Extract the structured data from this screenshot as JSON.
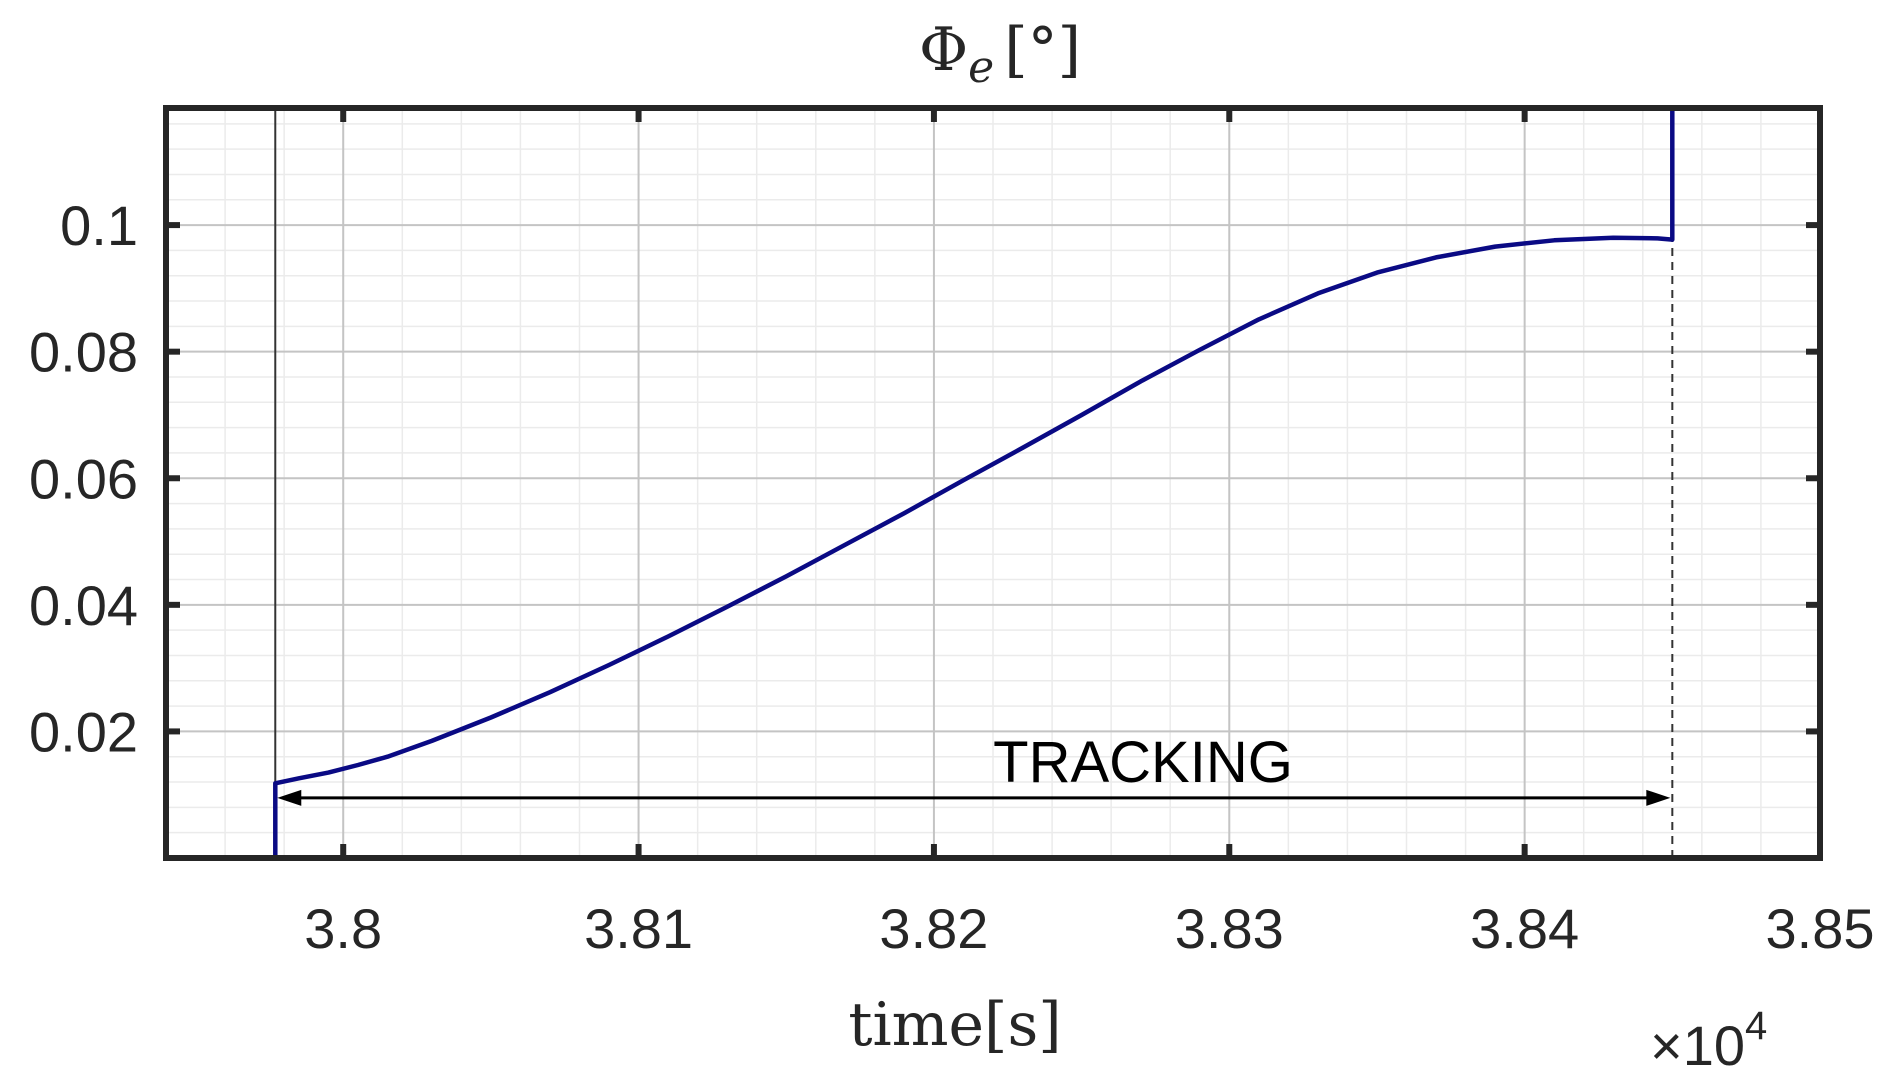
{
  "chart_data": {
    "type": "line",
    "title_symbol": "Φ",
    "title_subscript": "e",
    "title_unit": "[°]",
    "xlabel": "time[s]",
    "ylabel": "",
    "x_exponent_base": "×10",
    "x_exponent_power": "4",
    "xlim": [
      3.794,
      3.85
    ],
    "ylim": [
      0,
      0.1185
    ],
    "x_ticks": [
      3.8,
      3.81,
      3.82,
      3.83,
      3.84,
      3.85
    ],
    "x_tick_labels": [
      "3.8",
      "3.81",
      "3.82",
      "3.83",
      "3.84",
      "3.85"
    ],
    "y_ticks": [
      0.02,
      0.04,
      0.06,
      0.08,
      0.1
    ],
    "y_tick_labels": [
      "0.02",
      "0.04",
      "0.06",
      "0.08",
      "0.1"
    ],
    "grid": true,
    "minor_grid": true,
    "line_color": "#0a0a84",
    "series": [
      {
        "x": [
          3.7977,
          3.7977,
          3.7985,
          3.7995,
          3.8005,
          3.8015,
          3.803,
          3.805,
          3.807,
          3.809,
          3.811,
          3.813,
          3.815,
          3.817,
          3.819,
          3.821,
          3.823,
          3.825,
          3.827,
          3.829,
          3.831,
          3.833,
          3.835,
          3.837,
          3.839,
          3.841,
          3.843,
          3.8445,
          3.845,
          3.845
        ],
        "y": [
          0.0,
          0.0118,
          0.0126,
          0.0135,
          0.0147,
          0.016,
          0.0185,
          0.0222,
          0.0262,
          0.0305,
          0.035,
          0.0397,
          0.0445,
          0.0495,
          0.0545,
          0.0597,
          0.0648,
          0.07,
          0.0753,
          0.0803,
          0.0851,
          0.0892,
          0.0925,
          0.0949,
          0.0966,
          0.0976,
          0.098,
          0.0979,
          0.0977,
          0.1185
        ]
      }
    ],
    "annotations": {
      "tracking_label": "TRACKING",
      "tracking_start_x": 3.7977,
      "tracking_end_x": 3.845,
      "tracking_y": 0.0095,
      "vline_start_x": 3.7977,
      "vline_end_x": 3.845
    }
  }
}
